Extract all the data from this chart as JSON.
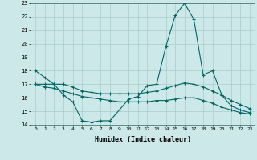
{
  "title": "",
  "xlabel": "Humidex (Indice chaleur)",
  "background_color": "#cce8e8",
  "grid_color": "#aacccc",
  "line_color": "#006666",
  "x_values": [
    0,
    1,
    2,
    3,
    4,
    5,
    6,
    7,
    8,
    9,
    10,
    11,
    12,
    13,
    14,
    15,
    16,
    17,
    18,
    19,
    20,
    21,
    22,
    23
  ],
  "line1": [
    18.0,
    17.5,
    17.0,
    16.2,
    15.7,
    14.3,
    14.2,
    14.3,
    14.3,
    15.1,
    15.9,
    16.1,
    16.9,
    17.0,
    19.8,
    22.1,
    23.0,
    21.8,
    17.7,
    18.0,
    16.2,
    15.4,
    15.1,
    14.9
  ],
  "line2": [
    17.0,
    17.0,
    17.0,
    17.0,
    16.8,
    16.5,
    16.4,
    16.3,
    16.3,
    16.3,
    16.3,
    16.3,
    16.4,
    16.5,
    16.7,
    16.9,
    17.1,
    17.0,
    16.8,
    16.5,
    16.2,
    15.8,
    15.5,
    15.2
  ],
  "line3": [
    17.0,
    16.8,
    16.7,
    16.5,
    16.3,
    16.1,
    16.0,
    15.9,
    15.8,
    15.7,
    15.7,
    15.7,
    15.7,
    15.8,
    15.8,
    15.9,
    16.0,
    16.0,
    15.8,
    15.6,
    15.3,
    15.1,
    14.9,
    14.8
  ],
  "ylim": [
    14,
    23
  ],
  "xlim": [
    -0.5,
    23.5
  ],
  "yticks": [
    14,
    15,
    16,
    17,
    18,
    19,
    20,
    21,
    22,
    23
  ],
  "xticks": [
    0,
    1,
    2,
    3,
    4,
    5,
    6,
    7,
    8,
    9,
    10,
    11,
    12,
    13,
    14,
    15,
    16,
    17,
    18,
    19,
    20,
    21,
    22,
    23
  ]
}
